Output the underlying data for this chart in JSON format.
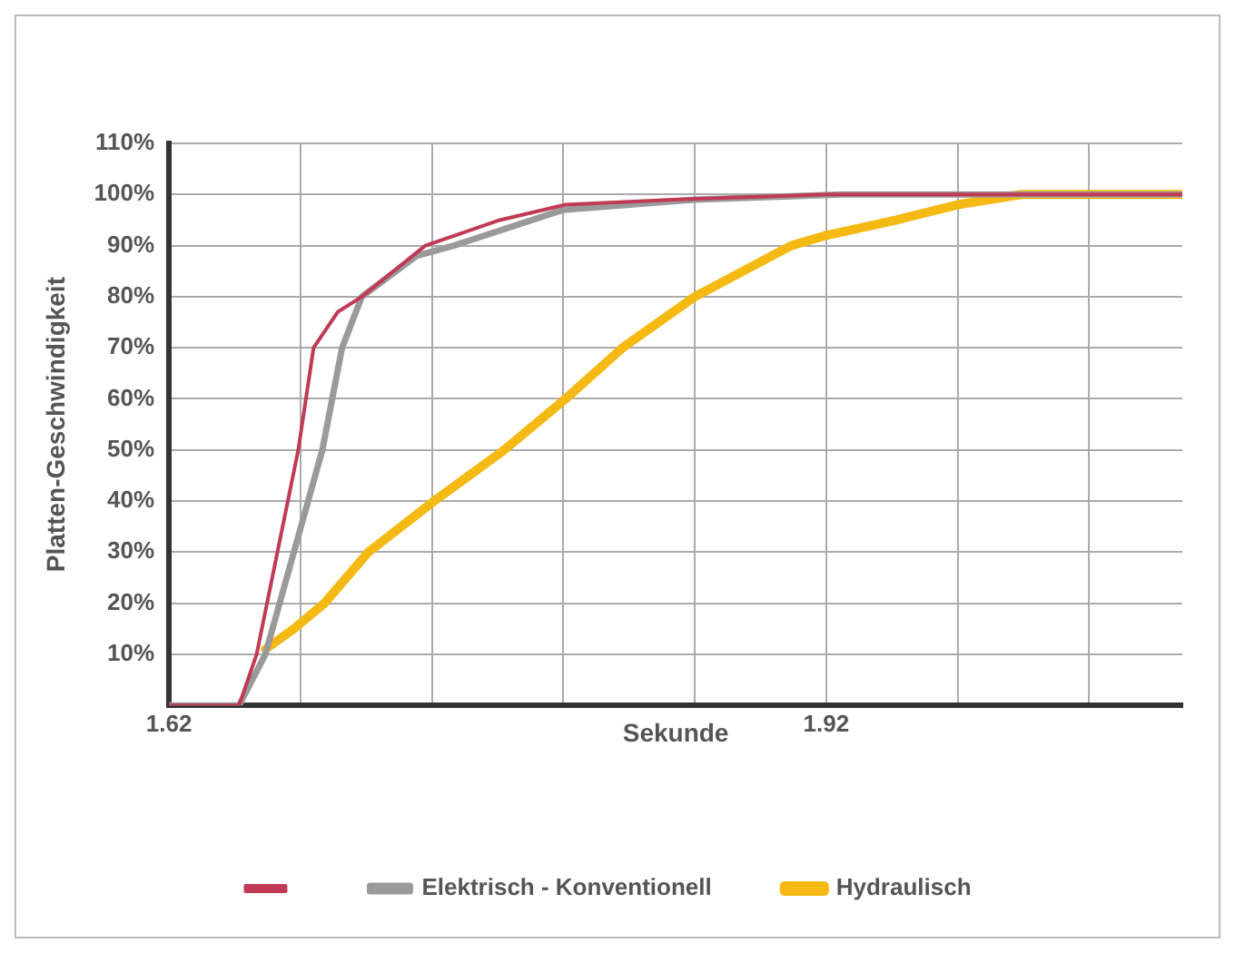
{
  "chart_data": {
    "type": "line",
    "xlabel": "Sekunde",
    "ylabel": "Platten-Geschwindigkeit",
    "xlim": [
      1.62,
      2.0825
    ],
    "xticks": [
      1.62,
      {
        "value": 1.68,
        "label": null
      },
      {
        "value": 1.74,
        "label": null
      },
      {
        "value": 1.8,
        "label": null
      },
      {
        "value": 1.86,
        "label": null
      },
      1.92,
      {
        "value": 1.98,
        "label": null
      },
      {
        "value": 2.04,
        "label": null
      }
    ],
    "ylim": [
      0,
      110
    ],
    "yticks": [
      {
        "value": 0,
        "label": null
      },
      {
        "value": 10,
        "label": "10%"
      },
      {
        "value": 20,
        "label": "20%"
      },
      {
        "value": 30,
        "label": "30%"
      },
      {
        "value": 40,
        "label": "40%"
      },
      {
        "value": 50,
        "label": "50%"
      },
      {
        "value": 60,
        "label": "60%"
      },
      {
        "value": 70,
        "label": "70%"
      },
      {
        "value": 80,
        "label": "80%"
      },
      {
        "value": 90,
        "label": "90%"
      },
      {
        "value": 100,
        "label": "100%"
      },
      {
        "value": 110,
        "label": "110%"
      }
    ],
    "grid": true,
    "legend": "bottom",
    "marker": "none",
    "line_style": "solid",
    "series": [
      {
        "color": "#c03a55",
        "x": [
          1.62,
          1.652,
          1.66,
          1.679,
          1.686,
          1.697,
          1.708,
          1.737,
          1.771,
          1.801,
          1.85,
          1.92,
          2.0825
        ],
        "values": [
          0,
          0,
          10,
          50,
          70,
          77,
          80,
          90,
          95,
          98,
          99,
          100,
          100
        ]
      },
      {
        "name": "Elektrisch - Konventionell",
        "color": "#9a9a9a",
        "x": [
          1.62,
          1.652,
          1.664,
          1.677,
          1.69,
          1.699,
          1.708,
          1.733,
          1.75,
          1.8,
          1.86,
          1.927,
          2.0825
        ],
        "values": [
          0,
          0,
          10,
          30,
          50,
          70,
          80,
          88,
          90,
          97,
          99,
          100,
          100
        ]
      },
      {
        "name": "Hydraulisch",
        "color": "#f5b914",
        "x": [
          1.664,
          1.677,
          1.691,
          1.711,
          1.741,
          1.773,
          1.801,
          1.827,
          1.86,
          1.904,
          1.92,
          1.952,
          1.98,
          2.009,
          2.0825
        ],
        "values": [
          11,
          15,
          20,
          30,
          40,
          50,
          60,
          70,
          80,
          90,
          92,
          95,
          98,
          100,
          100
        ]
      }
    ]
  }
}
